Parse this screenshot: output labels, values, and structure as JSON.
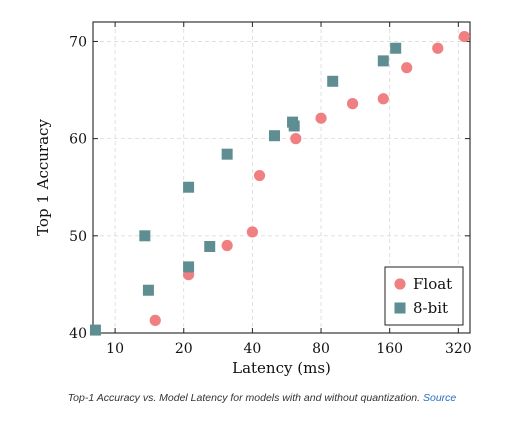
{
  "caption": {
    "text": "Top-1 Accuracy vs. Model Latency for models with and without quantization.",
    "link_text": "Source"
  },
  "chart_data": {
    "type": "scatter",
    "title": "",
    "xlabel": "Latency (ms)",
    "ylabel": "Top 1 Accuracy",
    "x_scale": "log2",
    "xlim": [
      8,
      360
    ],
    "ylim": [
      40,
      72
    ],
    "x_ticks": [
      10,
      20,
      40,
      80,
      160,
      320
    ],
    "x_tick_labels": [
      "10",
      "20",
      "40",
      "80",
      "160",
      "320"
    ],
    "y_ticks": [
      40,
      50,
      60,
      70
    ],
    "y_tick_labels": [
      "40",
      "50",
      "60",
      "70"
    ],
    "grid": true,
    "legend_position": "bottom-right",
    "series": [
      {
        "name": "Float",
        "marker": "circle",
        "color": "#f07f82",
        "points": [
          {
            "x": 15,
            "y": 41.3
          },
          {
            "x": 21,
            "y": 46.0
          },
          {
            "x": 31,
            "y": 49.0
          },
          {
            "x": 40,
            "y": 50.4
          },
          {
            "x": 43,
            "y": 56.2
          },
          {
            "x": 62,
            "y": 60.0
          },
          {
            "x": 80,
            "y": 62.1
          },
          {
            "x": 110,
            "y": 63.6
          },
          {
            "x": 150,
            "y": 64.1
          },
          {
            "x": 190,
            "y": 67.3
          },
          {
            "x": 260,
            "y": 69.3
          },
          {
            "x": 340,
            "y": 70.5
          }
        ]
      },
      {
        "name": "8-bit",
        "marker": "square",
        "color": "#5f8e92",
        "points": [
          {
            "x": 8.2,
            "y": 40.3
          },
          {
            "x": 14,
            "y": 44.4
          },
          {
            "x": 13.5,
            "y": 50.0
          },
          {
            "x": 21,
            "y": 46.8
          },
          {
            "x": 26,
            "y": 48.9
          },
          {
            "x": 21,
            "y": 55.0
          },
          {
            "x": 31,
            "y": 58.4
          },
          {
            "x": 50,
            "y": 60.3
          },
          {
            "x": 60,
            "y": 61.7
          },
          {
            "x": 61,
            "y": 61.3
          },
          {
            "x": 90,
            "y": 65.9
          },
          {
            "x": 150,
            "y": 68.0
          },
          {
            "x": 170,
            "y": 69.3
          }
        ]
      }
    ]
  }
}
